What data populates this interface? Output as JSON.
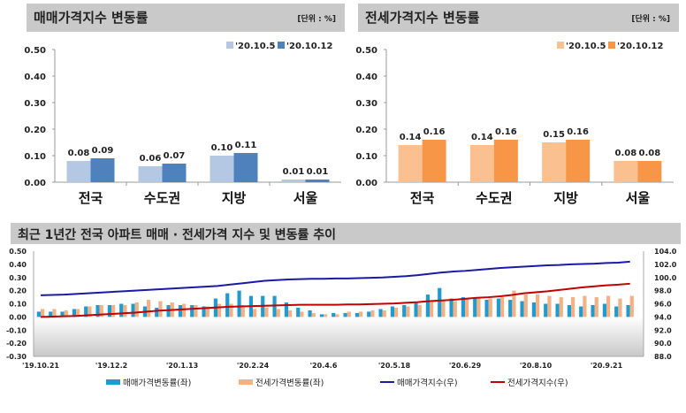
{
  "panels": [
    {
      "title": "매매가격지수 변동률",
      "unit": "[단위 : %]"
    },
    {
      "title": "전세가격지수 변동률",
      "unit": "[단위 : %]"
    },
    {
      "title": "최근 1년간 전국 아파트 매매 · 전세가격 지수 및 변동률 추이"
    }
  ],
  "chart_data": [
    {
      "type": "bar",
      "title": "매매가격지수 변동률",
      "categories": [
        "전국",
        "수도권",
        "지방",
        "서울"
      ],
      "series": [
        {
          "name": "'20.10.5",
          "values": [
            0.08,
            0.06,
            0.1,
            0.01
          ],
          "color": "#b4c8e4"
        },
        {
          "name": "'20.10.12",
          "values": [
            0.09,
            0.07,
            0.11,
            0.01
          ],
          "color": "#4f81bd"
        }
      ],
      "ylim": [
        0,
        0.5
      ],
      "yticks": [
        "0.00",
        "0.10",
        "0.20",
        "0.30",
        "0.40",
        "0.50"
      ]
    },
    {
      "type": "bar",
      "title": "전세가격지수 변동률",
      "categories": [
        "전국",
        "수도권",
        "지방",
        "서울"
      ],
      "series": [
        {
          "name": "'20.10.5",
          "values": [
            0.14,
            0.14,
            0.15,
            0.08
          ],
          "color": "#fac090"
        },
        {
          "name": "'20.10.12",
          "values": [
            0.16,
            0.16,
            0.16,
            0.08
          ],
          "color": "#f79646"
        }
      ],
      "ylim": [
        0,
        0.5
      ],
      "yticks": [
        "0.00",
        "0.10",
        "0.20",
        "0.30",
        "0.40",
        "0.50"
      ]
    },
    {
      "type": "bar+line",
      "title": "최근 1년간 전국 아파트 매매 · 전세가격 지수 및 변동률 추이",
      "xticks": [
        "'19.10.21",
        "'19.12.2",
        "'20.1.13",
        "'20.2.24",
        "'20.4.6",
        "'20.5.18",
        "'20.6.29",
        "'20.8.10",
        "'20.9.21"
      ],
      "ylim_left": [
        -0.3,
        0.5
      ],
      "yticks_left": [
        "-0.30",
        "-0.20",
        "-0.10",
        "0.00",
        "0.10",
        "0.20",
        "0.30",
        "0.40",
        "0.50"
      ],
      "ylim_right": [
        88,
        104
      ],
      "yticks_right": [
        "88.0",
        "90.0",
        "92.0",
        "94.0",
        "96.0",
        "98.0",
        "100.0",
        "102.0",
        "104.0"
      ],
      "series": [
        {
          "name": "매매가격변동률(좌)",
          "axis": "left",
          "kind": "bar",
          "color": "#1f9bd1",
          "values": [
            0.04,
            0.04,
            0.04,
            0.06,
            0.08,
            0.09,
            0.09,
            0.1,
            0.1,
            0.08,
            0.07,
            0.09,
            0.09,
            0.09,
            0.08,
            0.14,
            0.18,
            0.2,
            0.16,
            0.16,
            0.16,
            0.11,
            0.07,
            0.05,
            0.02,
            0.03,
            0.03,
            0.03,
            0.04,
            0.06,
            0.08,
            0.09,
            0.11,
            0.17,
            0.22,
            0.14,
            0.15,
            0.15,
            0.13,
            0.14,
            0.13,
            0.12,
            0.11,
            0.1,
            0.1,
            0.09,
            0.08,
            0.09,
            0.1,
            0.08,
            0.09
          ]
        },
        {
          "name": "전세가격변동률(좌)",
          "axis": "left",
          "kind": "bar",
          "color": "#f4b183",
          "values": [
            0.06,
            0.06,
            0.05,
            0.06,
            0.08,
            0.09,
            0.09,
            0.09,
            0.11,
            0.13,
            0.12,
            0.11,
            0.1,
            0.09,
            0.08,
            0.1,
            0.1,
            0.09,
            0.06,
            0.07,
            0.06,
            0.05,
            0.04,
            0.03,
            0.02,
            0.02,
            0.04,
            0.04,
            0.05,
            0.05,
            0.07,
            0.08,
            0.09,
            0.12,
            0.12,
            0.12,
            0.14,
            0.14,
            0.14,
            0.15,
            0.2,
            0.17,
            0.17,
            0.16,
            0.15,
            0.15,
            0.16,
            0.15,
            0.16,
            0.14,
            0.16
          ]
        },
        {
          "name": "매매가격지수(우)",
          "axis": "right",
          "kind": "line",
          "color": "#1a1aa6",
          "values": [
            97.3,
            97.35,
            97.4,
            97.5,
            97.6,
            97.7,
            97.8,
            97.9,
            98.0,
            98.1,
            98.2,
            98.3,
            98.4,
            98.5,
            98.6,
            98.7,
            98.9,
            99.1,
            99.3,
            99.5,
            99.6,
            99.7,
            99.75,
            99.8,
            99.8,
            99.85,
            99.85,
            99.9,
            99.95,
            100.0,
            100.1,
            100.2,
            100.35,
            100.55,
            100.75,
            100.9,
            101.0,
            101.15,
            101.3,
            101.45,
            101.55,
            101.65,
            101.75,
            101.85,
            101.9,
            102.0,
            102.05,
            102.1,
            102.2,
            102.25,
            102.4
          ]
        },
        {
          "name": "전세가격지수(우)",
          "axis": "right",
          "kind": "line",
          "color": "#c00000",
          "values": [
            94.0,
            94.05,
            94.1,
            94.15,
            94.25,
            94.35,
            94.45,
            94.55,
            94.65,
            94.8,
            94.95,
            95.05,
            95.15,
            95.25,
            95.35,
            95.45,
            95.55,
            95.6,
            95.65,
            95.7,
            95.75,
            95.8,
            95.85,
            95.85,
            95.85,
            95.85,
            95.9,
            95.9,
            95.95,
            96.0,
            96.05,
            96.15,
            96.25,
            96.4,
            96.5,
            96.6,
            96.75,
            96.9,
            97.0,
            97.15,
            97.35,
            97.6,
            97.75,
            97.9,
            98.1,
            98.3,
            98.5,
            98.65,
            98.8,
            98.9,
            99.05
          ]
        }
      ]
    }
  ]
}
